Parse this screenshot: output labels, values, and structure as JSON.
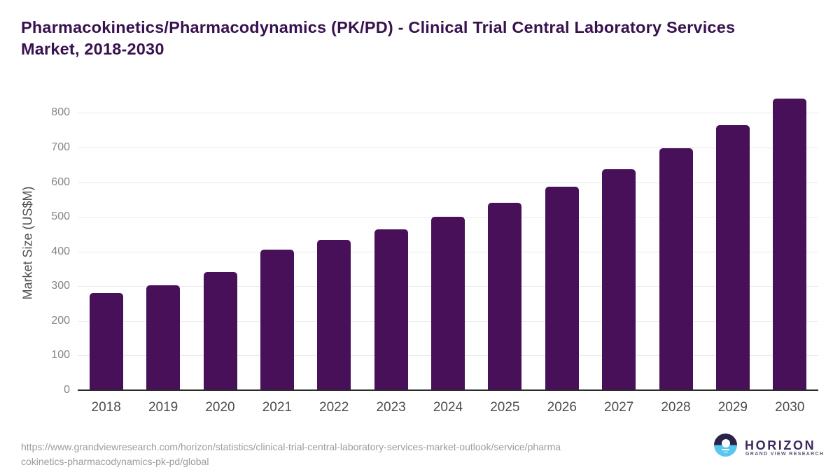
{
  "header": {
    "title_line1": "Pharmacokinetics/Pharmacodynamics (PK/PD) - Clinical Trial Central Laboratory Services",
    "title_line2": "Market, 2018-2030"
  },
  "chart_data": {
    "type": "bar",
    "title": "Pharmacokinetics/Pharmacodynamics (PK/PD) - Clinical Trial Central Laboratory Services Market, 2018-2030",
    "categories": [
      "2018",
      "2019",
      "2020",
      "2021",
      "2022",
      "2023",
      "2024",
      "2025",
      "2026",
      "2027",
      "2028",
      "2029",
      "2030"
    ],
    "values": [
      280,
      302,
      340,
      405,
      433,
      463,
      500,
      540,
      587,
      638,
      697,
      765,
      842
    ],
    "xlabel": "",
    "ylabel": "Market Size (US$M)",
    "ylim": [
      0,
      850
    ],
    "yticks": [
      0,
      100,
      200,
      300,
      400,
      500,
      600,
      700,
      800
    ],
    "grid": true,
    "legend_position": "none"
  },
  "footer": {
    "source_url_line1": "https://www.grandviewresearch.com/horizon/statistics/clinical-trial-central-laboratory-services-market-outlook/service/pharma",
    "source_url_line2": "cokinetics-pharmacodynamics-pk-pd/global"
  },
  "logo": {
    "brand": "HORIZON",
    "tagline": "GRAND VIEW RESEARCH"
  },
  "colors": {
    "bar": "#471059",
    "title": "#38124e",
    "gridline": "#e9e9e9",
    "axis_line": "#2b2b2b",
    "y_tick_label": "#858585",
    "x_tick_label": "#4c4c4c",
    "y_axis_title": "#4f4f4f",
    "url_text": "#9c9c9c",
    "logo_dark": "#2b2347",
    "logo_light": "#57c7ee",
    "logo_text": "#3a2a5e"
  }
}
